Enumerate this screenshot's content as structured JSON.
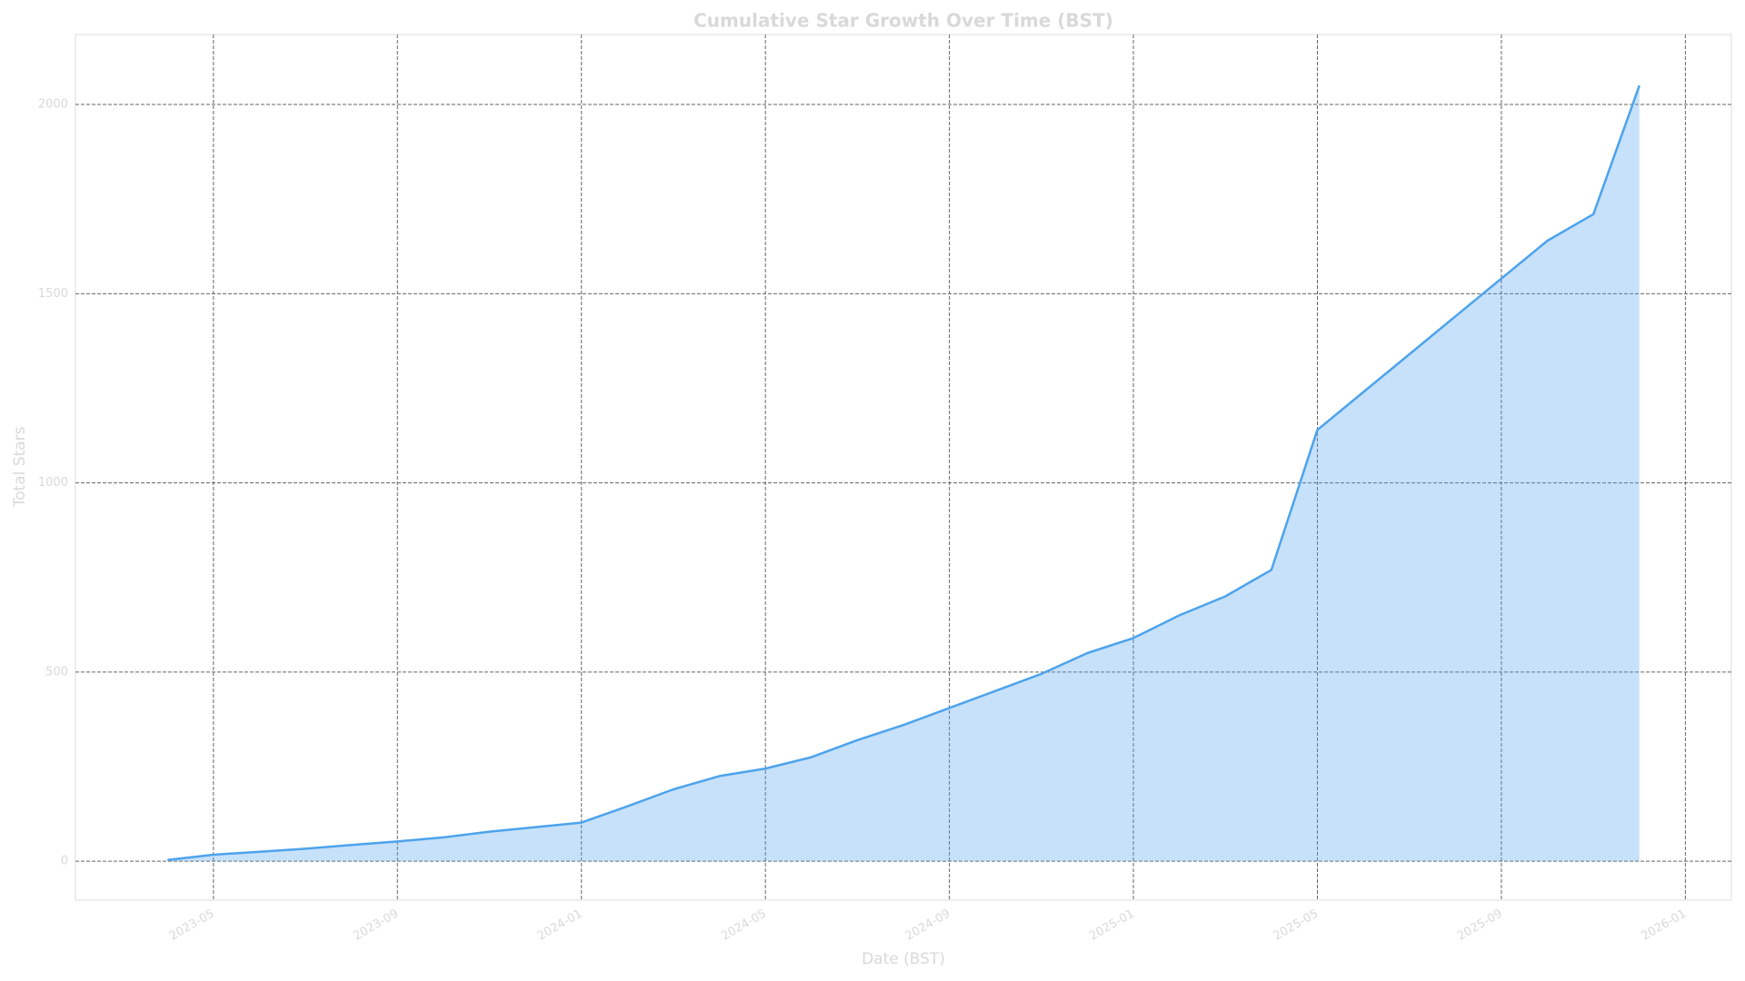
{
  "chart_data": {
    "type": "area",
    "title": "Cumulative Star Growth Over Time (BST)",
    "xlabel": "Date (BST)",
    "ylabel": "Total Stars",
    "x": [
      "2023-04",
      "2023-05",
      "2023-06",
      "2023-07",
      "2023-08",
      "2023-09",
      "2023-10",
      "2023-11",
      "2023-12",
      "2024-01",
      "2024-02",
      "2024-03",
      "2024-04",
      "2024-05",
      "2024-06",
      "2024-07",
      "2024-08",
      "2024-09",
      "2024-10",
      "2024-11",
      "2024-12",
      "2025-01",
      "2025-02",
      "2025-03",
      "2025-04",
      "2025-05",
      "2025-06",
      "2025-07",
      "2025-08",
      "2025-09",
      "2025-10",
      "2025-11",
      "2025-12"
    ],
    "values": [
      3,
      17,
      25,
      33,
      43,
      52,
      63,
      78,
      90,
      102,
      145,
      190,
      225,
      245,
      275,
      320,
      360,
      405,
      450,
      495,
      550,
      590,
      650,
      700,
      770,
      1140,
      1240,
      1340,
      1440,
      1540,
      1640,
      1710,
      2050
    ],
    "color": "#4da3ec",
    "xlim": [
      "2023-02",
      "2026-02"
    ],
    "xticks": [
      "2023-05",
      "2023-09",
      "2024-01",
      "2024-05",
      "2024-09",
      "2025-01",
      "2025-05",
      "2025-09",
      "2026-01"
    ],
    "ylim": [
      -103,
      2185
    ],
    "yticks": [
      0,
      500,
      1000,
      1500,
      2000
    ],
    "grid": true
  }
}
